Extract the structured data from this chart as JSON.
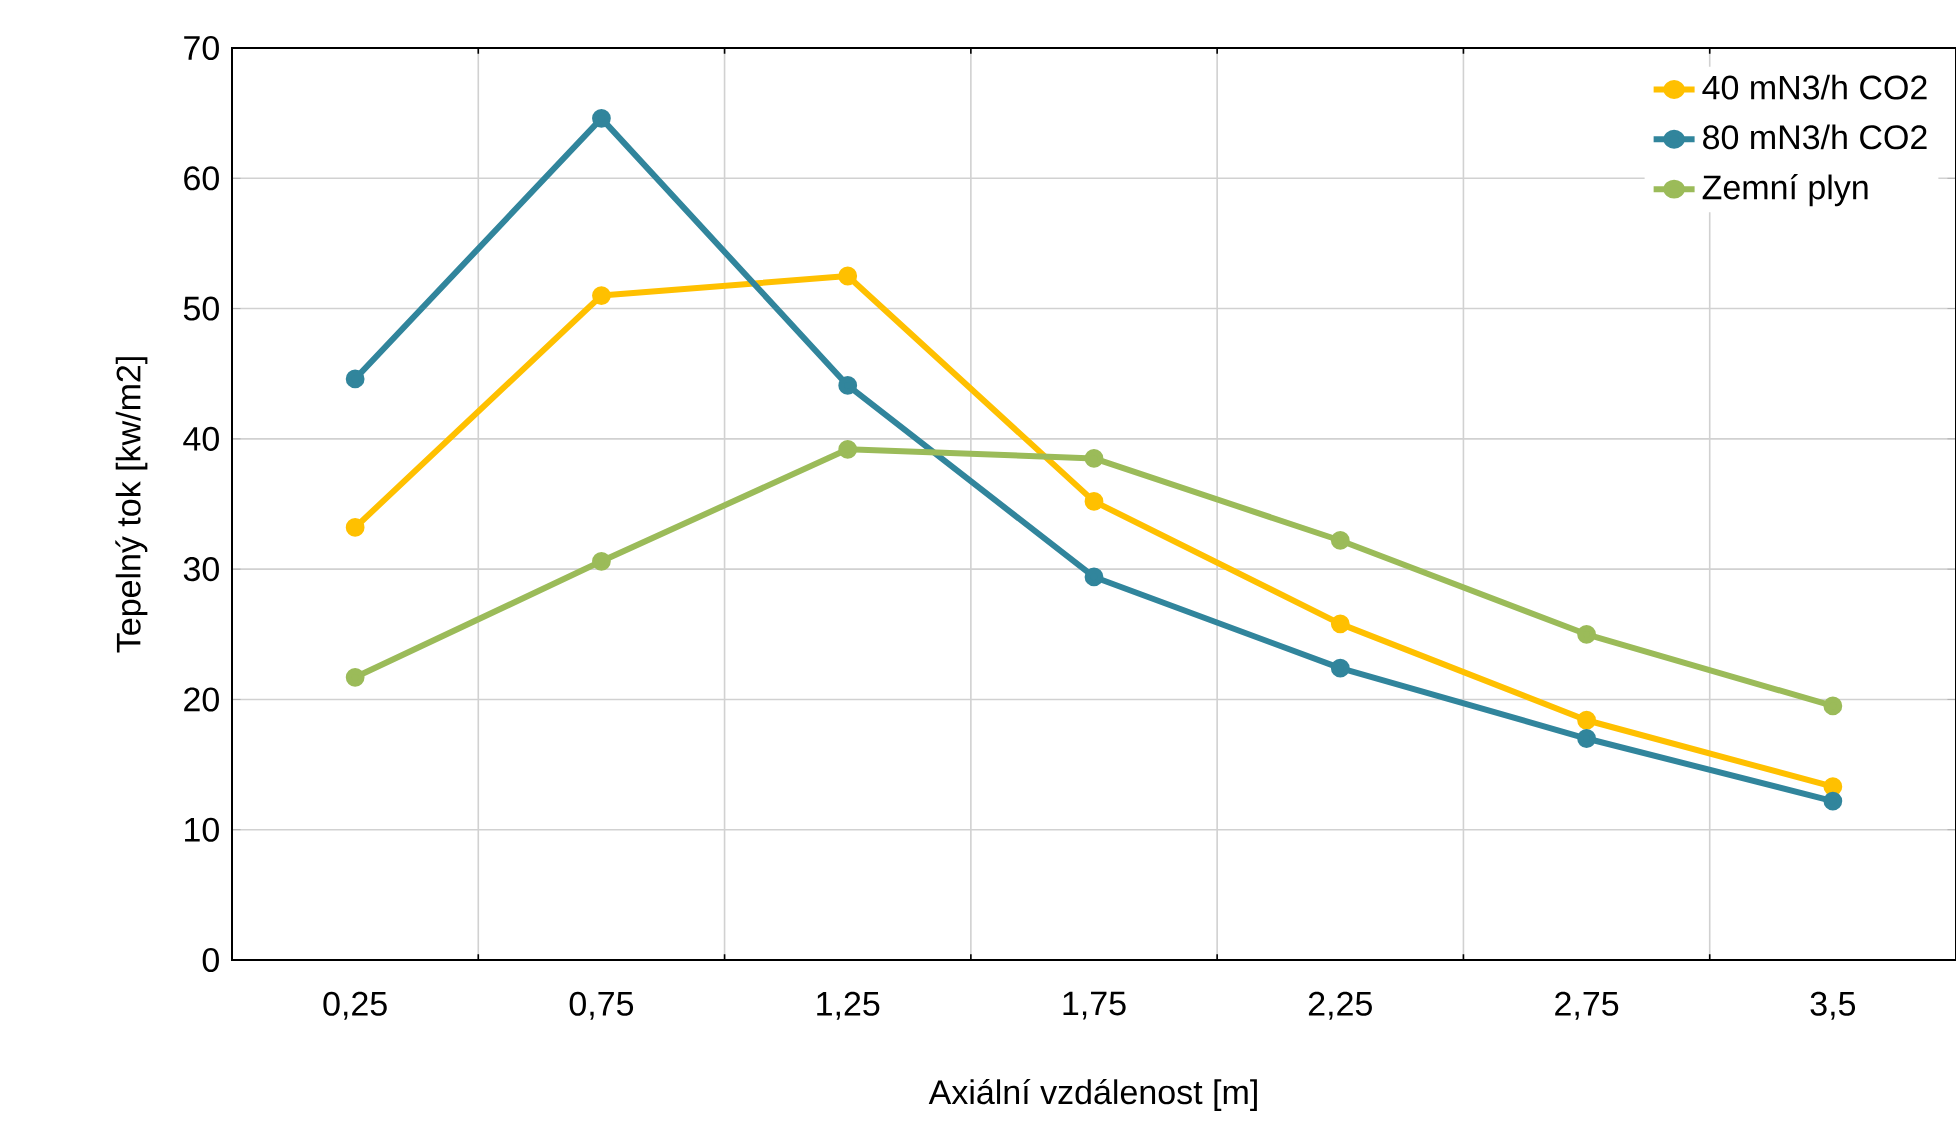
{
  "chart_data": {
    "type": "line",
    "xlabel": "Axiální vzdálenost [m]",
    "ylabel": "Tepelný tok [kw/m2]",
    "categories": [
      "0,25",
      "0,75",
      "1,25",
      "1,75",
      "2,25",
      "2,75",
      "3,5"
    ],
    "ylim": [
      0,
      70
    ],
    "yticks": [
      0,
      10,
      20,
      30,
      40,
      50,
      60,
      70
    ],
    "grid": true,
    "legend": "top right",
    "marker": "circle",
    "line_style": "solid",
    "series": [
      {
        "name": "40 mN3/h CO2",
        "color": "#ffc000",
        "values": [
          33.2,
          51.0,
          52.5,
          35.2,
          25.8,
          18.4,
          13.3
        ]
      },
      {
        "name": "80 mN3/h CO2",
        "color": "#31859c",
        "values": [
          44.6,
          64.6,
          44.1,
          29.4,
          22.4,
          17.0,
          12.2
        ]
      },
      {
        "name": "Zemní plyn",
        "color": "#9bbb59",
        "values": [
          21.7,
          30.6,
          39.2,
          38.5,
          32.2,
          25.0,
          19.5
        ]
      }
    ]
  }
}
